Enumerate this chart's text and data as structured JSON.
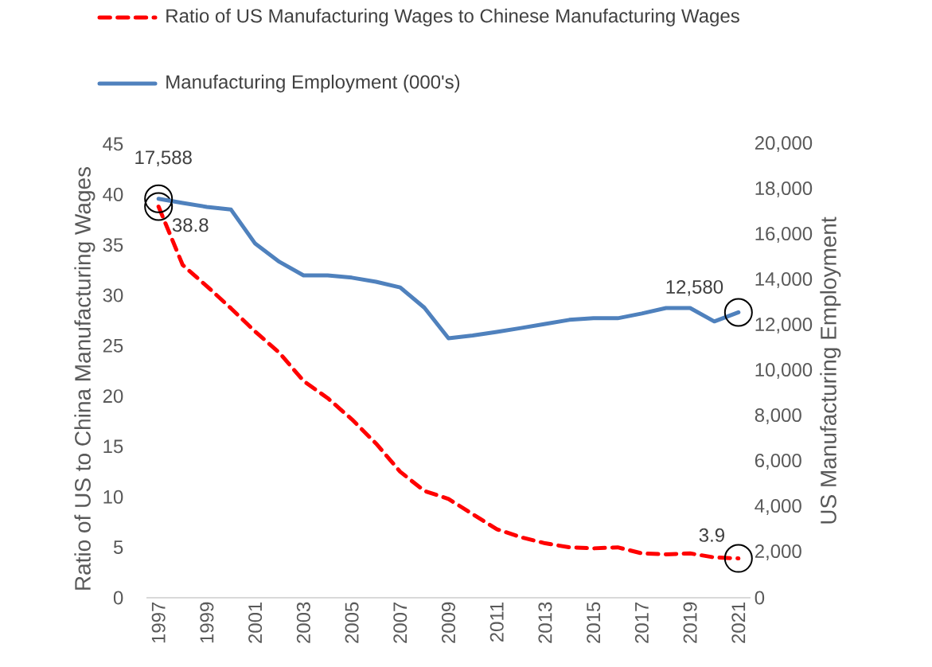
{
  "chart_data": {
    "type": "line",
    "categories": [
      "1997",
      null,
      "1999",
      null,
      "2001",
      null,
      "2003",
      null,
      "2005",
      null,
      "2007",
      null,
      "2009",
      null,
      "2011",
      null,
      "2013",
      null,
      "2015",
      null,
      "2017",
      null,
      "2019",
      null,
      "2021"
    ],
    "series": [
      {
        "name": "Ratio of US Manufacturing Wages to Chinese Manufacturing Wages",
        "color": "#ff0000",
        "line_style": "dashed",
        "axis": "y",
        "values": [
          38.8,
          33.0,
          30.9,
          28.7,
          26.4,
          24.3,
          21.5,
          19.8,
          17.7,
          15.3,
          12.5,
          10.6,
          9.8,
          8.3,
          6.8,
          6.0,
          5.4,
          5.0,
          4.9,
          5.0,
          4.4,
          4.3,
          4.4,
          4.0,
          3.9
        ],
        "value_labels": [
          "38.8",
          null,
          null,
          null,
          null,
          null,
          null,
          null,
          null,
          null,
          null,
          null,
          null,
          null,
          null,
          null,
          null,
          null,
          null,
          null,
          null,
          null,
          null,
          null,
          "3.9"
        ]
      },
      {
        "name": "Manufacturing Employment (000's)",
        "color": "#4f81bd",
        "line_style": "solid",
        "axis": "y2",
        "values": [
          17588,
          17400,
          17230,
          17110,
          15610,
          14810,
          14210,
          14210,
          14110,
          13930,
          13680,
          12790,
          11440,
          11560,
          11720,
          11890,
          12070,
          12250,
          12320,
          12320,
          12530,
          12770,
          12770,
          12180,
          12580
        ],
        "value_labels": [
          "17,588",
          null,
          null,
          null,
          null,
          null,
          null,
          null,
          null,
          null,
          null,
          null,
          null,
          null,
          null,
          null,
          null,
          null,
          null,
          null,
          null,
          null,
          null,
          null,
          "12,580"
        ]
      }
    ],
    "ylabel": "Ratio of US to China Manufacturing Wages",
    "y2label": "US Manufacturing Employment",
    "ylim": [
      0,
      45
    ],
    "yticks": [
      0,
      5,
      10,
      15,
      20,
      25,
      30,
      35,
      40,
      45
    ],
    "y2lim": [
      0,
      20000
    ],
    "y2ticks": [
      0,
      {
        "value": 2000,
        "label": "2,000"
      },
      {
        "value": 4000,
        "label": "4,000"
      },
      {
        "value": 6000,
        "label": "6,000"
      },
      {
        "value": 8000,
        "label": "8,000"
      },
      {
        "value": 10000,
        "label": "10,000"
      },
      {
        "value": 12000,
        "label": "12,000"
      },
      {
        "value": 14000,
        "label": "14,000"
      },
      {
        "value": 16000,
        "label": "16,000"
      },
      {
        "value": 18000,
        "label": "18,000"
      },
      {
        "value": 20000,
        "label": "20,000"
      }
    ],
    "legend": "top"
  }
}
